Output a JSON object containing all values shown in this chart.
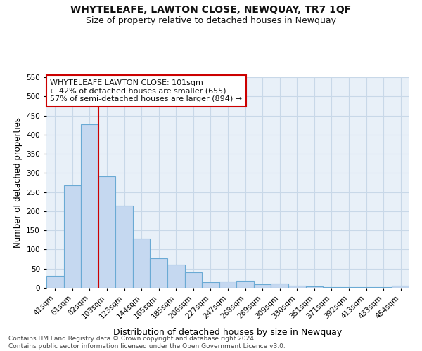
{
  "title": "WHYTELEAFE, LAWTON CLOSE, NEWQUAY, TR7 1QF",
  "subtitle": "Size of property relative to detached houses in Newquay",
  "xlabel": "Distribution of detached houses by size in Newquay",
  "ylabel": "Number of detached properties",
  "bar_labels": [
    "41sqm",
    "61sqm",
    "82sqm",
    "103sqm",
    "123sqm",
    "144sqm",
    "165sqm",
    "185sqm",
    "206sqm",
    "227sqm",
    "247sqm",
    "268sqm",
    "289sqm",
    "309sqm",
    "330sqm",
    "351sqm",
    "371sqm",
    "392sqm",
    "413sqm",
    "433sqm",
    "454sqm"
  ],
  "bar_values": [
    32,
    267,
    428,
    291,
    215,
    129,
    77,
    61,
    41,
    15,
    17,
    18,
    10,
    11,
    5,
    3,
    2,
    1,
    1,
    1,
    5
  ],
  "bar_color": "#c5d8f0",
  "bar_edge_color": "#6aaad4",
  "vline_x_index": 2.5,
  "vline_color": "#cc0000",
  "annotation_text": "WHYTELEAFE LAWTON CLOSE: 101sqm\n← 42% of detached houses are smaller (655)\n57% of semi-detached houses are larger (894) →",
  "annotation_box_color": "#ffffff",
  "annotation_box_edge_color": "#cc0000",
  "ylim": [
    0,
    550
  ],
  "yticks": [
    0,
    50,
    100,
    150,
    200,
    250,
    300,
    350,
    400,
    450,
    500,
    550
  ],
  "grid_color": "#c8d8e8",
  "background_color": "#e8f0f8",
  "footer_text": "Contains HM Land Registry data © Crown copyright and database right 2024.\nContains public sector information licensed under the Open Government Licence v3.0.",
  "title_fontsize": 10,
  "subtitle_fontsize": 9,
  "xlabel_fontsize": 9,
  "ylabel_fontsize": 8.5,
  "tick_fontsize": 7.5,
  "annotation_fontsize": 8,
  "footer_fontsize": 6.5
}
